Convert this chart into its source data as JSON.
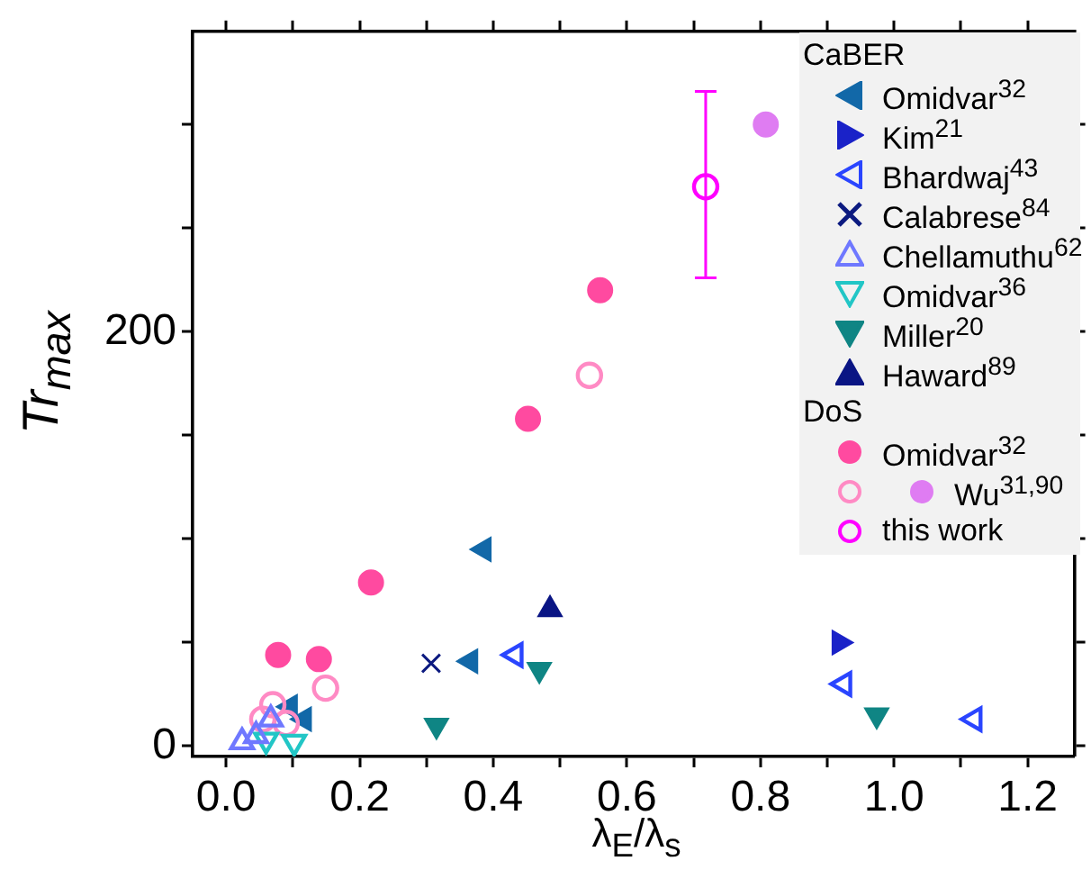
{
  "chart_data": {
    "type": "scatter",
    "xlabel": "λ$_{E}$/λ$_{s}$",
    "ylabel": "Tr$_{max}$",
    "legend_title": [
      "CaBER",
      "DoS"
    ],
    "legend": "top right",
    "grid": false,
    "xlim": [
      -0.05,
      1.27
    ],
    "ylim": [
      -5,
      345
    ],
    "xticks": [
      {
        "value": 0,
        "label": "0.0"
      },
      {
        "value": 0.1,
        "label": null
      },
      {
        "value": 0.2,
        "label": "0.2"
      },
      {
        "value": 0.3,
        "label": null
      },
      {
        "value": 0.4,
        "label": "0.4"
      },
      {
        "value": 0.5,
        "label": null
      },
      {
        "value": 0.6,
        "label": "0.6"
      },
      {
        "value": 0.7,
        "label": null
      },
      {
        "value": 0.8,
        "label": "0.8"
      },
      {
        "value": 0.9,
        "label": null
      },
      {
        "value": 1,
        "label": "1.0"
      },
      {
        "value": 1.1,
        "label": null
      },
      {
        "value": 1.2,
        "label": "1.2"
      }
    ],
    "yticks": [
      0,
      {
        "value": 50,
        "label": null
      },
      {
        "value": 100,
        "label": null
      },
      {
        "value": 150,
        "label": null
      },
      200,
      {
        "value": 250,
        "label": null
      },
      {
        "value": 300,
        "label": null
      }
    ],
    "series": [
      {
        "name": "Omidvar$^{32}$",
        "color": "#1268a8",
        "marker": "triangle-left",
        "x": [
          0.096,
          0.117,
          0.366,
          0.386
        ],
        "values": [
          19,
          13,
          41,
          95
        ]
      },
      {
        "name": "Kim$^{21}$",
        "color": "#1a22c8",
        "marker": "triangle-right",
        "x": [
          0.918
        ],
        "values": [
          50
        ]
      },
      {
        "name": "Bhardwaj$^{43}$",
        "color": "#2a45ff",
        "marker": "triangle-left-open",
        "x": [
          0.433,
          0.925,
          1.12
        ],
        "values": [
          44,
          30,
          13
        ]
      },
      {
        "name": "Calabrese$^{84}$",
        "color": "#0c1a80",
        "marker": "cross",
        "x": [
          0.307
        ],
        "values": [
          40
        ]
      },
      {
        "name": "Chellamuthu$^{62}$",
        "color": "#6f78ff",
        "marker": "triangle-open",
        "x": [
          0.024,
          0.045,
          0.067
        ],
        "values": [
          2,
          5,
          13
        ]
      },
      {
        "name": "Omidvar$^{36}$",
        "color": "#22c6c6",
        "marker": "triangle-down-open",
        "x": [
          0.06,
          0.102
        ],
        "values": [
          3,
          2
        ]
      },
      {
        "name": "Miller$^{20}$",
        "color": "#0f8584",
        "marker": "triangle-down",
        "x": [
          0.315,
          0.469,
          0.974
        ],
        "values": [
          10,
          37,
          15
        ]
      },
      {
        "name": "Haward$^{89}$",
        "color": "#0a1584",
        "marker": "triangle",
        "x": [
          0.485
        ],
        "values": [
          66
        ]
      },
      {
        "name": "Omidvar$^{32}$",
        "color": "#ff4aa0",
        "marker": "circle",
        "x": [
          0.078,
          0.139,
          0.217,
          0.452,
          0.56
        ],
        "values": [
          44,
          42,
          79,
          158,
          220
        ]
      },
      {
        "color": "#ff8ac4",
        "marker": "circle-open",
        "x": [
          0.055,
          0.07,
          0.09,
          0.149,
          0.544
        ],
        "values": [
          13,
          20,
          11,
          28,
          179
        ]
      },
      {
        "name": "Wu$^{31,90}$",
        "color": "#df7cf2",
        "marker": "circle",
        "x": [
          0.808
        ],
        "values": [
          300
        ]
      },
      {
        "name": "this work",
        "color": "#ff00ff",
        "marker": "circle-open",
        "x": [
          0.718
        ],
        "values": [
          270
        ],
        "errors": [
          [
            226,
            316
          ]
        ]
      }
    ]
  }
}
